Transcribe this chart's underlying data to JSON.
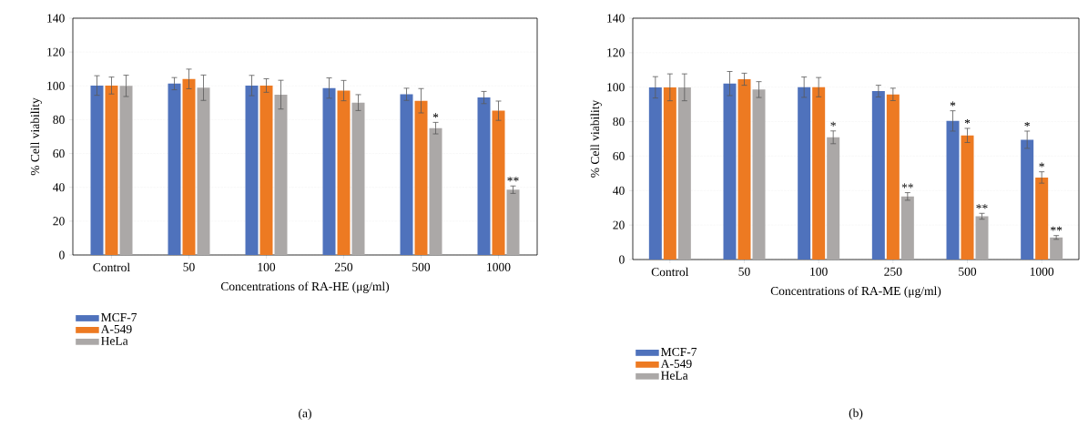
{
  "chart_data": [
    {
      "type": "bar",
      "xlabel": "Concentrations of RA-HE (μg/ml)",
      "ylabel": "% Cell viability",
      "categories": [
        "Control",
        "50",
        "100",
        "250",
        "500",
        "1000"
      ],
      "series": [
        {
          "name": "MCF-7",
          "color": "#4f72bc",
          "values": [
            100.2,
            101.3,
            100.2,
            98.7,
            95.0,
            93.1
          ],
          "errors": [
            5.8,
            3.6,
            6.0,
            6.0,
            3.6,
            3.6
          ]
        },
        {
          "name": "A-549",
          "color": "#ed7a22",
          "values": [
            100.2,
            104.1,
            100.2,
            97.2,
            91.2,
            85.3
          ],
          "errors": [
            5.0,
            5.8,
            4.0,
            6.0,
            7.2,
            5.7
          ]
        },
        {
          "name": "HeLa",
          "color": "#aba8a7",
          "values": [
            100.0,
            98.9,
            94.8,
            90.1,
            75.0,
            38.6
          ],
          "errors": [
            6.3,
            7.5,
            8.5,
            4.7,
            3.4,
            2.2
          ],
          "value_labels": [
            null,
            null,
            null,
            null,
            "*",
            "**"
          ]
        }
      ],
      "ylim": [
        0,
        140
      ],
      "yticks": [
        0,
        20,
        40,
        60,
        80,
        100,
        120,
        140
      ],
      "grid": "y",
      "legend": "bottom left",
      "annotations": [
        "(a)"
      ]
    },
    {
      "type": "bar",
      "xlabel": "Concentrations of RA-ME (μg/ml)",
      "ylabel": "% Cell viability",
      "categories": [
        "Control",
        "50",
        "100",
        "250",
        "500",
        "1000"
      ],
      "series": [
        {
          "name": "MCF-7",
          "color": "#4f72bc",
          "values": [
            99.9,
            102.1,
            100.0,
            97.7,
            80.4,
            69.5
          ],
          "errors": [
            6.2,
            7.0,
            5.9,
            3.4,
            5.9,
            5.0
          ],
          "value_labels": [
            null,
            null,
            null,
            null,
            "*",
            "*"
          ]
        },
        {
          "name": "A-549",
          "color": "#ed7a22",
          "values": [
            99.9,
            104.6,
            100.0,
            95.8,
            72.0,
            47.6
          ],
          "errors": [
            7.8,
            3.5,
            5.6,
            3.6,
            4.1,
            3.3
          ],
          "value_labels": [
            null,
            null,
            null,
            null,
            "*",
            "*"
          ]
        },
        {
          "name": "HeLa",
          "color": "#aba8a7",
          "values": [
            99.9,
            98.6,
            70.9,
            36.6,
            25.1,
            12.8
          ],
          "errors": [
            7.8,
            4.6,
            3.7,
            2.2,
            1.7,
            1.1
          ],
          "value_labels": [
            null,
            null,
            "*",
            "**",
            "**",
            "**"
          ]
        }
      ],
      "ylim": [
        0,
        140
      ],
      "yticks": [
        0,
        20,
        40,
        60,
        80,
        100,
        120,
        140
      ],
      "grid": "y",
      "legend": "bottom left",
      "annotations": [
        "(b)"
      ]
    }
  ]
}
